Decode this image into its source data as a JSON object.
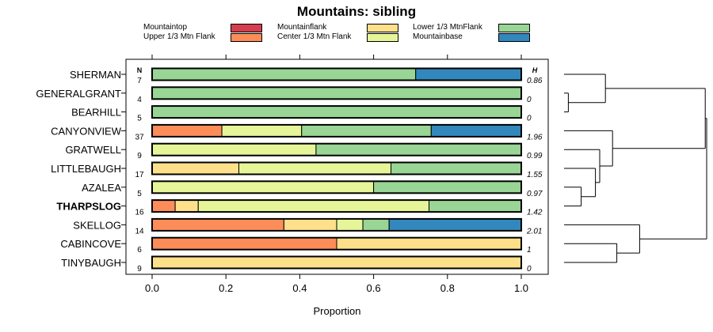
{
  "chart_data": {
    "type": "bar",
    "stacked": true,
    "orientation": "horizontal",
    "title": "Mountains: sibling",
    "xlabel": "Proportion",
    "ylabel": "",
    "xlim": [
      0,
      1
    ],
    "xticks": [
      "0.0",
      "0.2",
      "0.4",
      "0.6",
      "0.8",
      "1.0"
    ],
    "xtick_values": [
      0,
      0.2,
      0.4,
      0.6,
      0.8,
      1.0
    ],
    "n_header": "N",
    "h_header": "H",
    "highlighted_category": "THARPSLOG",
    "categories": [
      "SHERMAN",
      "GENERALGRANT",
      "BEARHILL",
      "CANYONVIEW",
      "GRATWELL",
      "LITTLEBAUGH",
      "AZALEA",
      "THARPSLOG",
      "SKELLOG",
      "CABINCOVE",
      "TINYBAUGH"
    ],
    "n": [
      "7",
      "4",
      "5",
      "37",
      "9",
      "17",
      "5",
      "16",
      "14",
      "6",
      "9"
    ],
    "h": [
      "0.86",
      "0",
      "0",
      "1.96",
      "0.99",
      "1.55",
      "0.97",
      "1.42",
      "2.01",
      "1",
      "0"
    ],
    "series": [
      {
        "name": "Mountaintop",
        "color": "#d53e4f",
        "values": [
          0,
          0,
          0,
          0,
          0,
          0,
          0,
          0,
          0,
          0,
          0
        ]
      },
      {
        "name": "Upper 1/3 Mtn Flank",
        "color": "#fc8d59",
        "values": [
          0,
          0,
          0,
          0.189,
          0,
          0,
          0,
          0.0625,
          0.357,
          0.5,
          0
        ]
      },
      {
        "name": "Mountainflank",
        "color": "#fee08b",
        "values": [
          0,
          0,
          0,
          0,
          0,
          0.235,
          0,
          0.0625,
          0.143,
          0.5,
          1.0
        ]
      },
      {
        "name": "Center 1/3 Mtn Flank",
        "color": "#e6f598",
        "values": [
          0,
          0,
          0,
          0.216,
          0.444,
          0.412,
          0.6,
          0.625,
          0.071,
          0,
          0
        ]
      },
      {
        "name": "Lower 1/3 MtnFlank",
        "color": "#99d594",
        "values": [
          0.714,
          1.0,
          1.0,
          0.351,
          0.556,
          0.353,
          0.4,
          0.25,
          0.071,
          0,
          0
        ]
      },
      {
        "name": "Mountainbase",
        "color": "#3288bd",
        "values": [
          0.286,
          0,
          0,
          0.243,
          0,
          0,
          0,
          0,
          0.357,
          0,
          0
        ]
      }
    ],
    "dendrogram": {
      "leaves": [
        "SHERMAN",
        "GENERALGRANT",
        "BEARHILL",
        "CANYONVIEW",
        "GRATWELL",
        "LITTLEBAUGH",
        "AZALEA",
        "THARPSLOG",
        "SKELLOG",
        "CABINCOVE",
        "TINYBAUGH"
      ],
      "merges": [
        {
          "left": "L1",
          "right": "L2",
          "height": 0.03
        },
        {
          "left": "L0",
          "right": "M0",
          "height": 0.29
        },
        {
          "left": "L6",
          "right": "L7",
          "height": 0.12
        },
        {
          "left": "L5",
          "right": "M2",
          "height": 0.22
        },
        {
          "left": "L4",
          "right": "M3",
          "height": 0.25
        },
        {
          "left": "L3",
          "right": "M4",
          "height": 0.34
        },
        {
          "left": "L9",
          "right": "L10",
          "height": 0.37
        },
        {
          "left": "L8",
          "right": "M6",
          "height": 0.53
        },
        {
          "left": "M1",
          "right": "M5",
          "height": 0.99
        },
        {
          "left": "M8",
          "right": "M7",
          "height": 1.0
        }
      ]
    }
  }
}
